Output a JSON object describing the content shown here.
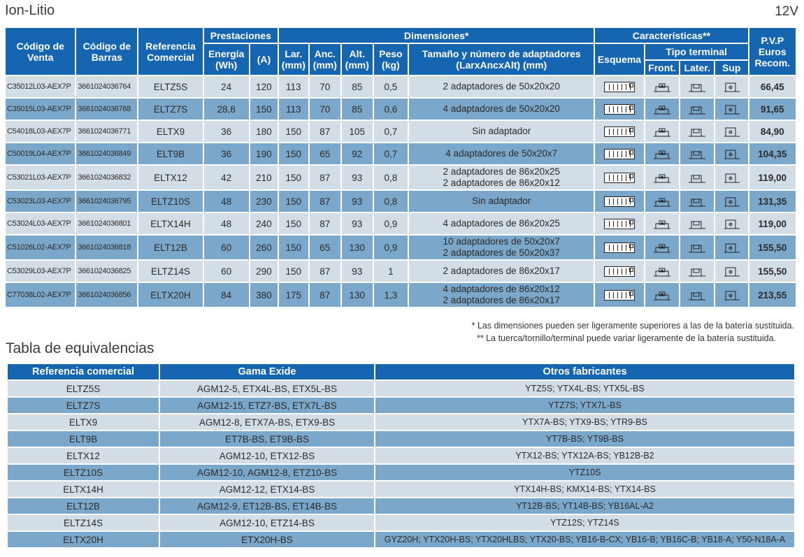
{
  "header": {
    "title": "Ion-Litio",
    "voltage": "12V"
  },
  "table": {
    "headers": {
      "codigo_venta": "Código de Venta",
      "codigo_barras": "Código de Barras",
      "referencia": "Referencia Comercial",
      "prestaciones": "Prestaciones",
      "energia": "Energía (Wh)",
      "amperios": "(A)",
      "dimensiones": "Dimensiones*",
      "lar": "Lar. (mm)",
      "anc": "Anc. (mm)",
      "alt": "Alt. (mm)",
      "peso": "Peso (kg)",
      "adaptadores": "Tamaño y número de adaptadores (LarxAncxAlt) (mm)",
      "caracteristicas": "Características**",
      "esquema": "Esquema",
      "tipo_terminal": "Tipo terminal",
      "front": "Front.",
      "later": "Later.",
      "sup": "Sup",
      "pvp": "P.V.P Euros Recom."
    },
    "rows": [
      {
        "venta": "C35012L03-AEX7P",
        "barras": "3661024036764",
        "ref": "ELTZ5S",
        "energia": "24",
        "amp": "120",
        "lar": "113",
        "anc": "70",
        "alt": "85",
        "peso": "0,5",
        "adapt1": "2 adaptadores de 50x20x20",
        "adapt2": "",
        "pvp": "66,45"
      },
      {
        "venta": "C35015L03-AEX7P",
        "barras": "3661024036788",
        "ref": "ELTZ7S",
        "energia": "28,8",
        "amp": "150",
        "lar": "113",
        "anc": "70",
        "alt": "85",
        "peso": "0,6",
        "adapt1": "4 adaptadores de 50x20x20",
        "adapt2": "",
        "pvp": "91,65"
      },
      {
        "venta": "C54018L03-AEX7P",
        "barras": "3661024036771",
        "ref": "ELTX9",
        "energia": "36",
        "amp": "180",
        "lar": "150",
        "anc": "87",
        "alt": "105",
        "peso": "0,7",
        "adapt1": "Sin adaptador",
        "adapt2": "",
        "pvp": "84,90"
      },
      {
        "venta": "C50019L04-AEX7P",
        "barras": "3661024036849",
        "ref": "ELT9B",
        "energia": "36",
        "amp": "190",
        "lar": "150",
        "anc": "65",
        "alt": "92",
        "peso": "0,7",
        "adapt1": "4 adaptadores de 50x20x7",
        "adapt2": "",
        "pvp": "104,35"
      },
      {
        "venta": "C53021L03-AEX7P",
        "barras": "3661024036832",
        "ref": "ELTX12",
        "energia": "42",
        "amp": "210",
        "lar": "150",
        "anc": "87",
        "alt": "93",
        "peso": "0,8",
        "adapt1": "2 adaptadores de 86x20x25",
        "adapt2": "2 adaptadores de 86x20x12",
        "pvp": "119,00"
      },
      {
        "venta": "C53023L03-AEX7P",
        "barras": "3661024036795",
        "ref": "ELTZ10S",
        "energia": "48",
        "amp": "230",
        "lar": "150",
        "anc": "87",
        "alt": "93",
        "peso": "0,8",
        "adapt1": "Sin adaptador",
        "adapt2": "",
        "pvp": "131,35"
      },
      {
        "venta": "C53024L03-AEX7P",
        "barras": "3661024036801",
        "ref": "ELTX14H",
        "energia": "48",
        "amp": "240",
        "lar": "150",
        "anc": "87",
        "alt": "93",
        "peso": "0,9",
        "adapt1": "4 adaptadores de 86x20x25",
        "adapt2": "",
        "pvp": "119,00"
      },
      {
        "venta": "C51026L02-AEX7P",
        "barras": "3661024036818",
        "ref": "ELT12B",
        "energia": "60",
        "amp": "260",
        "lar": "150",
        "anc": "65",
        "alt": "130",
        "peso": "0,9",
        "adapt1": "10 adaptadores de 50x20x7",
        "adapt2": "2 adaptadores de 50x20x37",
        "pvp": "155,50"
      },
      {
        "venta": "C53029L03-AEX7P",
        "barras": "3661024036825",
        "ref": "ELTZ14S",
        "energia": "60",
        "amp": "290",
        "lar": "150",
        "anc": "87",
        "alt": "93",
        "peso": "1",
        "adapt1": "2 adaptadores de 86x20x17",
        "adapt2": "",
        "pvp": "155,50"
      },
      {
        "venta": "C77038L02-AEX7P",
        "barras": "3661024036856",
        "ref": "ELTX20H",
        "energia": "84",
        "amp": "380",
        "lar": "175",
        "anc": "87",
        "alt": "130",
        "peso": "1,3",
        "adapt1": "4 adaptadores de 86x20x12",
        "adapt2": "2 adaptadores de 86x20x17",
        "pvp": "213,55"
      }
    ]
  },
  "footnotes": [
    "* Las dimensiones pueden ser ligeramente superiores a las de la batería sustituida.",
    "** La tuerca/tornillo/terminal puede variar ligeramente de la batería sustituida."
  ],
  "equivalencias": {
    "title": "Tabla de equivalencias",
    "headers": {
      "ref": "Referencia comercial",
      "exide": "Gama Exide",
      "otros": "Otros fabricantes"
    },
    "rows": [
      {
        "ref": "ELTZ5S",
        "exide": "AGM12-5, ETX4L-BS, ETX5L-BS",
        "otros": "YTZ5S; YTX4L-BS; YTX5L-BS"
      },
      {
        "ref": "ELTZ7S",
        "exide": "AGM12-15, ETZ7-BS, ETX7L-BS",
        "otros": "YTZ7S; YTX7L-BS"
      },
      {
        "ref": "ELTX9",
        "exide": "AGM12-8, ETX7A-BS, ETX9-BS",
        "otros": "YTX7A-BS; YTX9-BS; YTR9-BS"
      },
      {
        "ref": "ELT9B",
        "exide": "ET7B-BS, ET9B-BS",
        "otros": "YT7B-BS; YT9B-BS"
      },
      {
        "ref": "ELTX12",
        "exide": "AGM12-10, ETX12-BS",
        "otros": "YTX12-BS; YTX12A-BS; YB12B-B2"
      },
      {
        "ref": "ELTZ10S",
        "exide": "AGM12-10, AGM12-8, ETZ10-BS",
        "otros": "YTZ10S"
      },
      {
        "ref": "ELTX14H",
        "exide": "AGM12-12, ETX14-BS",
        "otros": "YTX14H-BS; KMX14-BS; YTX14-BS"
      },
      {
        "ref": "ELT12B",
        "exide": "AGM12-9, ET12B-BS, ET14B-BS",
        "otros": "YT12B-BS; YT14B-BS; YB16AL-A2"
      },
      {
        "ref": "ELTZ14S",
        "exide": "AGM12-10, ETZ14-BS",
        "otros": "YTZ12S; YTZ14S"
      },
      {
        "ref": "ELTX20H",
        "exide": "ETX20H-BS",
        "otros": "GYZ20H; YTX20H-BS; YTX20HLBS; YTX20-BS; YB16-B-CX; YB16-B; YB16C-B; YB18-A; Y50-N18A-A"
      }
    ]
  },
  "colors": {
    "header_blue": "#1565b0",
    "row_light": "#d2dde6",
    "row_dark": "#7ba7ca"
  },
  "icons": {
    "esquema": "battery-schematic-icon",
    "front": "front-terminal-icon",
    "later": "lateral-terminal-icon",
    "sup": "top-terminal-icon"
  }
}
